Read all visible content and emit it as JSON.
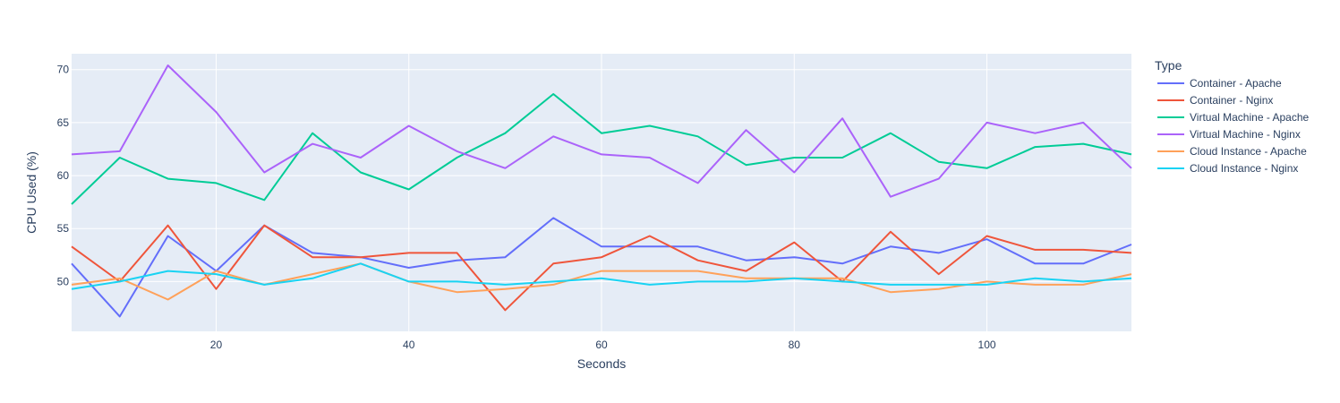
{
  "chart_data": {
    "type": "line",
    "xlabel": "Seconds",
    "ylabel": "CPU Used (%)",
    "xlim": [
      5,
      115
    ],
    "ylim": [
      45.3,
      71.5
    ],
    "xticks": [
      20,
      40,
      60,
      80,
      100
    ],
    "yticks": [
      50,
      55,
      60,
      65,
      70
    ],
    "legend_title": "Type",
    "legend_position": "right",
    "background": "#E5ECF6",
    "grid": true,
    "x": [
      5,
      10,
      15,
      20,
      25,
      30,
      35,
      40,
      45,
      50,
      55,
      60,
      65,
      70,
      75,
      80,
      85,
      90,
      95,
      100,
      105,
      110,
      115
    ],
    "series": [
      {
        "name": "Container - Apache",
        "color": "#636EFA",
        "values": [
          51.7,
          46.7,
          54.3,
          51.0,
          55.3,
          52.7,
          52.3,
          51.3,
          52.0,
          52.3,
          56.0,
          53.3,
          53.3,
          53.3,
          52.0,
          52.3,
          51.7,
          53.3,
          52.7,
          54.0,
          51.7,
          51.7,
          53.5
        ]
      },
      {
        "name": "Container - Nginx",
        "color": "#EF553B",
        "values": [
          53.3,
          50.0,
          55.3,
          49.3,
          55.3,
          52.3,
          52.3,
          52.7,
          52.7,
          47.3,
          51.7,
          52.3,
          54.3,
          52.0,
          51.0,
          53.7,
          50.0,
          54.7,
          50.7,
          54.3,
          53.0,
          53.0,
          52.7
        ]
      },
      {
        "name": "Virtual Machine - Apache",
        "color": "#00CC96",
        "values": [
          57.3,
          61.7,
          59.7,
          59.3,
          57.7,
          64.0,
          60.3,
          58.7,
          61.7,
          64.0,
          67.7,
          64.0,
          64.7,
          63.7,
          61.0,
          61.7,
          61.7,
          64.0,
          61.3,
          60.7,
          62.7,
          63.0,
          62.0
        ]
      },
      {
        "name": "Virtual Machine - Nginx",
        "color": "#AB63FA",
        "values": [
          62.0,
          62.3,
          70.4,
          66.0,
          60.3,
          63.0,
          61.7,
          64.7,
          62.3,
          60.7,
          63.7,
          62.0,
          61.7,
          59.3,
          64.3,
          60.3,
          65.4,
          58.0,
          59.7,
          65.0,
          64.0,
          65.0,
          60.7
        ]
      },
      {
        "name": "Cloud Instance - Apache",
        "color": "#FFA15A",
        "values": [
          49.7,
          50.3,
          48.3,
          51.0,
          49.7,
          50.7,
          51.7,
          50.0,
          49.0,
          49.3,
          49.7,
          51.0,
          51.0,
          51.0,
          50.3,
          50.3,
          50.3,
          49.0,
          49.3,
          50.0,
          49.7,
          49.7,
          50.7
        ]
      },
      {
        "name": "Cloud Instance - Nginx",
        "color": "#19D3F3",
        "values": [
          49.3,
          50.0,
          51.0,
          50.7,
          49.7,
          50.3,
          51.7,
          50.0,
          50.0,
          49.7,
          50.0,
          50.3,
          49.7,
          50.0,
          50.0,
          50.3,
          50.0,
          49.7,
          49.7,
          49.7,
          50.3,
          50.0,
          50.3
        ]
      }
    ]
  }
}
